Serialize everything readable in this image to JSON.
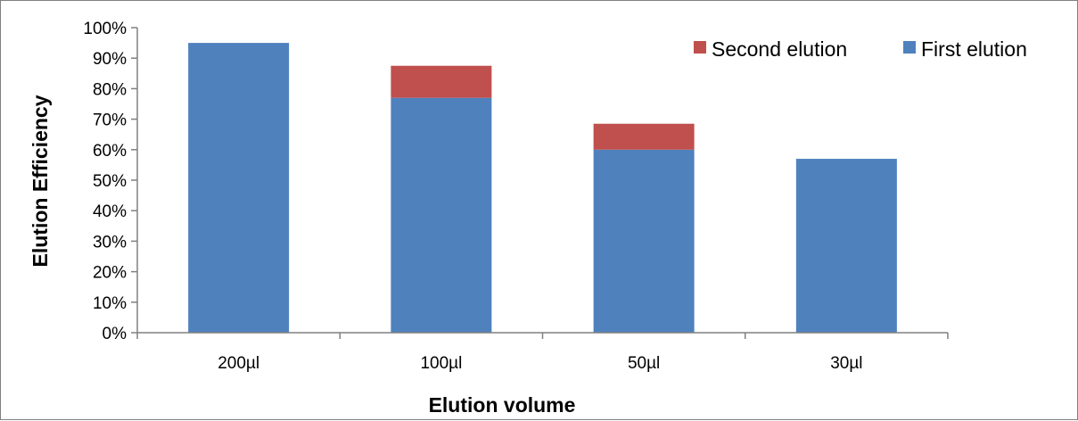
{
  "chart_data": {
    "type": "bar",
    "stacked": true,
    "categories": [
      "200µl",
      "100µl",
      "50µl",
      "30µl"
    ],
    "series": [
      {
        "name": "First elution",
        "color": "#4f81bd",
        "values": [
          0.95,
          0.77,
          0.6,
          0.57
        ]
      },
      {
        "name": "Second elution",
        "color": "#c0504d",
        "values": [
          0.0,
          0.105,
          0.085,
          0.0
        ]
      }
    ],
    "xlabel": "Elution volume",
    "ylabel": "Elution Efficiency",
    "ylim": [
      0,
      1
    ],
    "yticks": [
      "0%",
      "10%",
      "20%",
      "30%",
      "40%",
      "50%",
      "60%",
      "70%",
      "80%",
      "90%",
      "100%"
    ],
    "grid": false,
    "legend": {
      "position": "top-right",
      "order": [
        "Second elution",
        "First elution"
      ]
    }
  }
}
